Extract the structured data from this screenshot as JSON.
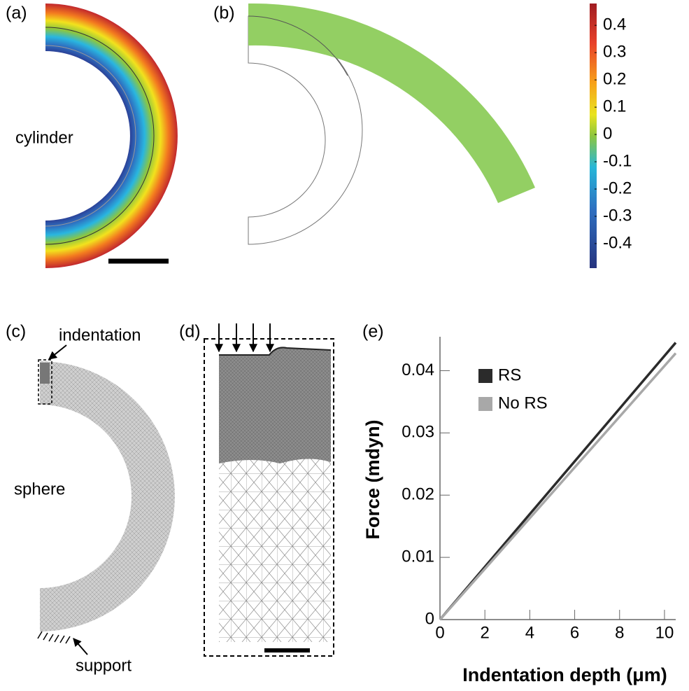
{
  "panels": {
    "a": {
      "label": "(a)",
      "text": "cylinder"
    },
    "b": {
      "label": "(b)"
    },
    "colorbar": {
      "ticks": [
        0.4,
        0.3,
        0.2,
        0.1,
        0,
        -0.1,
        -0.2,
        -0.3,
        -0.4
      ],
      "clim": [
        -0.49,
        0.48
      ]
    },
    "c": {
      "label": "(c)",
      "annotations": [
        "indentation",
        "sphere",
        "support"
      ]
    },
    "d": {
      "label": "(d)"
    },
    "e": {
      "label": "(e)"
    }
  },
  "chart_data": {
    "type": "line",
    "xlabel": "Indentation depth (μm)",
    "ylabel": "Force (mdyn)",
    "x": [
      0,
      10.5
    ],
    "series": [
      {
        "name": "RS",
        "color": "#2b2b2b",
        "values": [
          0,
          0.0445
        ]
      },
      {
        "name": "No RS",
        "color": "#a8a8a8",
        "values": [
          0,
          0.0428
        ]
      }
    ],
    "xlim": [
      0,
      10.5
    ],
    "xticks": [
      0,
      2,
      4,
      6,
      8,
      10
    ],
    "ylim": [
      0,
      0.045
    ],
    "yticks": [
      0,
      0.01,
      0.02,
      0.03,
      0.04
    ],
    "legend": "upper left"
  }
}
